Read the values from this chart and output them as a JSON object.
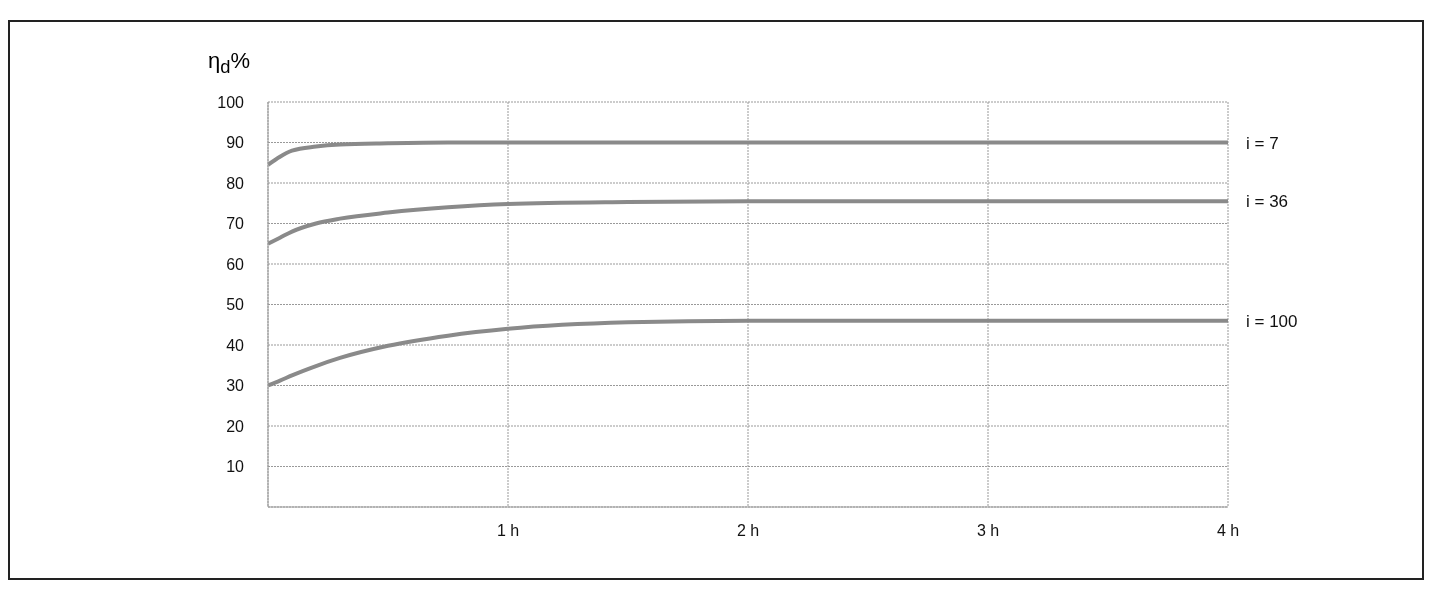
{
  "chart_data": {
    "type": "line",
    "ylabel": "η$_{d}$%",
    "x": [
      0,
      0.05,
      0.1,
      0.2,
      0.3,
      0.5,
      0.75,
      1,
      1.5,
      2,
      3,
      4
    ],
    "series": [
      {
        "name": "i = 7",
        "color": "#8a8a8a",
        "values": [
          84.5,
          86.5,
          88,
          89,
          89.5,
          89.8,
          90,
          90,
          90,
          90,
          90,
          90
        ]
      },
      {
        "name": "i = 36",
        "color": "#8a8a8a",
        "values": [
          65,
          66.5,
          68,
          70,
          71.2,
          72.7,
          74,
          74.8,
          75.3,
          75.5,
          75.5,
          75.5
        ]
      },
      {
        "name": "i = 100",
        "color": "#8a8a8a",
        "values": [
          30,
          31.2,
          32.5,
          34.8,
          36.8,
          39.8,
          42.3,
          44,
          45.6,
          46,
          46,
          46
        ]
      }
    ],
    "xlim": [
      0,
      4
    ],
    "xticks": [
      {
        "value": 0,
        "label": null
      },
      {
        "value": 1,
        "label": "1 h"
      },
      {
        "value": 2,
        "label": "2 h"
      },
      {
        "value": 3,
        "label": "3 h"
      },
      {
        "value": 4,
        "label": "4 h"
      }
    ],
    "ylim": [
      0,
      100
    ],
    "yticks": [
      {
        "value": 0,
        "label": null
      },
      10,
      20,
      30,
      40,
      50,
      60,
      70,
      80,
      90,
      100
    ],
    "grid": true,
    "legend": false,
    "marker": "none",
    "line_style": "solid"
  }
}
